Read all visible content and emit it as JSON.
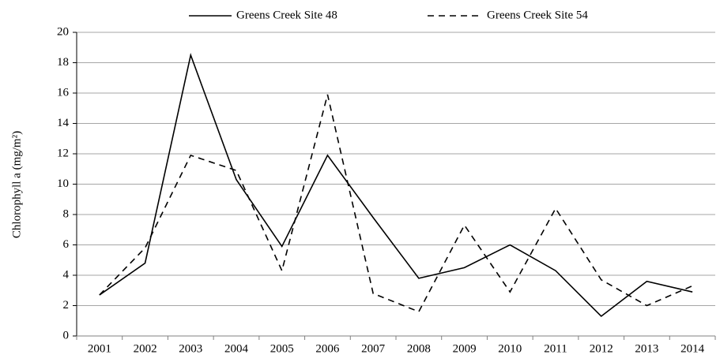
{
  "chart_data": {
    "type": "line",
    "y_label": "Chlorophyll a (mg/m²)",
    "categories": [
      "2001",
      "2002",
      "2003",
      "2004",
      "2005",
      "2006",
      "2007",
      "2008",
      "2009",
      "2010",
      "2011",
      "2012",
      "2013",
      "2014"
    ],
    "series": [
      {
        "name": "Greens Creek Site 48",
        "color": "#000000",
        "line_style": "solid",
        "values": [
          2.7,
          4.8,
          18.5,
          10.3,
          5.9,
          11.9,
          7.8,
          3.8,
          4.5,
          6.0,
          4.3,
          1.3,
          3.6,
          2.9
        ]
      },
      {
        "name": "Greens Creek Site 54",
        "color": "#000000",
        "line_style": "dashed",
        "values": [
          2.7,
          5.8,
          11.9,
          10.9,
          4.3,
          15.9,
          2.8,
          1.6,
          7.3,
          2.9,
          8.4,
          3.7,
          2.0,
          3.3
        ]
      }
    ],
    "ylim": [
      0,
      20
    ],
    "yticks": [
      0,
      2,
      4,
      6,
      8,
      10,
      12,
      14,
      16,
      18,
      20
    ],
    "grid": true,
    "legend": "top"
  }
}
